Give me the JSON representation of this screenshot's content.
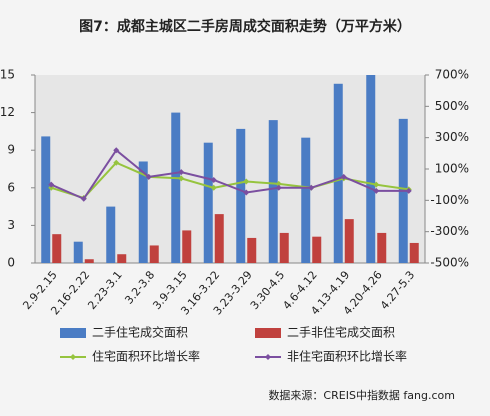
{
  "chart_data": {
    "type": "bar",
    "title": "图7：成都主城区二手房周成交面积走势（万平方米）",
    "source": "数据来源：CREIS中指数据 fang.com",
    "categories": [
      "2.9-2.15",
      "2.16-2.22",
      "2.23-3.1",
      "3.2-3.8",
      "3.9-3.15",
      "3.16-3.22",
      "3.23-3.29",
      "3.30-4.5",
      "4.6-4.12",
      "4.13-4.19",
      "4.20-4.26",
      "4.27-5.3"
    ],
    "ylim": [
      0,
      15
    ],
    "yticks": [
      0,
      3,
      6,
      9,
      12,
      15
    ],
    "y2lim": [
      -500,
      700
    ],
    "y2ticks": [
      {
        "value": -500,
        "label": "-500%"
      },
      {
        "value": -300,
        "label": "-300%"
      },
      {
        "value": -100,
        "label": "-100%"
      },
      {
        "value": 100,
        "label": "100%"
      },
      {
        "value": 300,
        "label": "300%"
      },
      {
        "value": 500,
        "label": "500%"
      },
      {
        "value": 700,
        "label": "700%"
      }
    ],
    "series": [
      {
        "name": "二手住宅成交面积",
        "type": "bar",
        "color": "#4a7cc4",
        "values": [
          10.1,
          1.7,
          4.5,
          8.1,
          12.0,
          9.6,
          10.7,
          11.4,
          10.0,
          14.3,
          15.0,
          11.5
        ]
      },
      {
        "name": "二手非住宅成交面积",
        "type": "bar",
        "color": "#c0413e",
        "values": [
          2.3,
          0.3,
          0.7,
          1.4,
          2.6,
          3.9,
          2.0,
          2.4,
          2.1,
          3.5,
          2.4,
          1.6
        ]
      },
      {
        "name": "住宅面积环比增长率",
        "type": "line",
        "axis": "y2",
        "color": "#96c43e",
        "values": [
          -20,
          -85,
          140,
          50,
          40,
          -20,
          20,
          5,
          -20,
          40,
          0,
          -30
        ]
      },
      {
        "name": "非住宅面积环比增长率",
        "type": "line",
        "axis": "y2",
        "color": "#7b4fa0",
        "values": [
          0,
          -90,
          220,
          50,
          80,
          30,
          -50,
          -20,
          -20,
          50,
          -40,
          -40
        ]
      }
    ]
  }
}
